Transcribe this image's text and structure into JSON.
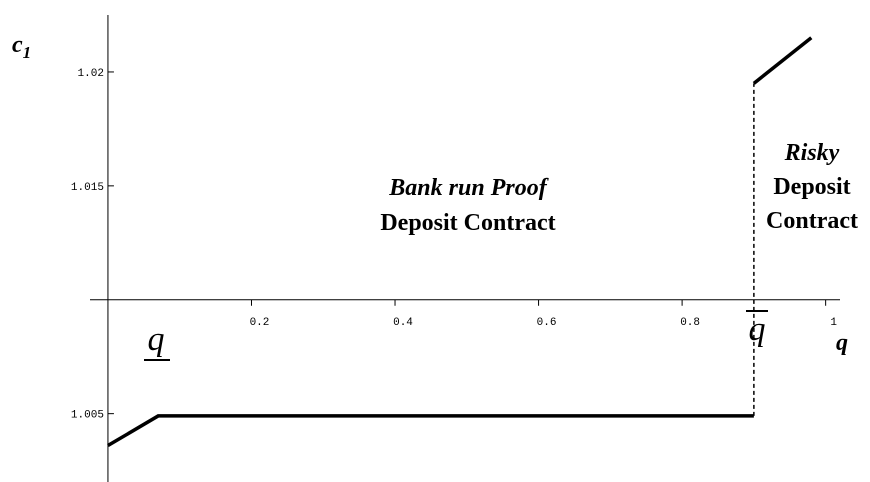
{
  "chart_data": {
    "type": "line",
    "y_label": "c",
    "y_label_sub": "1",
    "x_label": "q",
    "x": [
      0,
      0.07,
      0.9,
      0.9,
      0.9,
      0.98
    ],
    "series": [
      {
        "color": "#000000",
        "values": [
          1.0036,
          1.0049,
          1.0049,
          null,
          1.0195,
          1.0215
        ]
      }
    ],
    "threshold": 0.9,
    "xlim": [
      -0.025,
      1.02
    ],
    "ylim": [
      1.002,
      1.0225
    ],
    "axis_crossing": 1.01,
    "xticks": [
      0.2,
      0.4,
      0.6,
      0.8,
      1
    ],
    "yticks": [
      1.005,
      1.015,
      1.02
    ],
    "annotations": {
      "lower_q": "q",
      "upper_q": "q",
      "middle_1": "Bank run Proof",
      "middle_2": "Deposit Contract",
      "right_1": "Risky",
      "right_2": "Deposit",
      "right_3": "Contract"
    }
  }
}
